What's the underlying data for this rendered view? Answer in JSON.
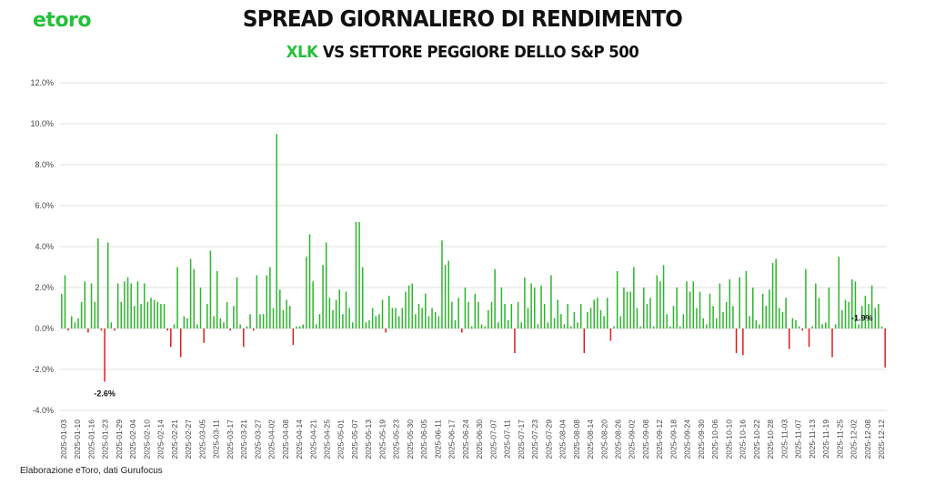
{
  "header": {
    "logo_text": "etoro",
    "title": "SPREAD GIORNALIERO DI RENDIMENTO",
    "subtitle_highlight": "XLK",
    "subtitle_rest": "VS SETTORE PEGGIORE DELLO S&P 500"
  },
  "footer": {
    "source": "Elaborazione eToro, dati Gurufocus"
  },
  "colors": {
    "positive": "#2db52d",
    "negative": "#e01b1b",
    "brand": "#25c03a",
    "grid": "#e2e2e2",
    "text": "#444444"
  },
  "chart_data": {
    "type": "bar",
    "title": "SPREAD GIORNALIERO DI RENDIMENTO",
    "subtitle": "XLK VS SETTORE PEGGIORE DELLO S&P 500",
    "xlabel": "",
    "ylabel": "",
    "ylim": [
      -4.0,
      12.0
    ],
    "yticks": [
      -4.0,
      -2.0,
      0.0,
      2.0,
      4.0,
      6.0,
      8.0,
      10.0,
      12.0
    ],
    "ytick_labels": [
      "-4.0%",
      "-2.0%",
      "0.0%",
      "2.0%",
      "4.0%",
      "6.0%",
      "8.0%",
      "10.0%",
      "12.0%"
    ],
    "grid": true,
    "xtick_labels": [
      "2025-01-03",
      "2025-01-10",
      "2025-01-16",
      "2025-01-23",
      "2025-01-29",
      "2025-02-04",
      "2025-02-10",
      "2025-02-14",
      "2025-02-21",
      "2025-02-27",
      "2025-03-05",
      "2025-03-11",
      "2025-03-17",
      "2025-03-21",
      "2025-03-27",
      "2025-04-02",
      "2025-04-08",
      "2025-04-14",
      "2025-04-21",
      "2025-04-25",
      "2025-05-01",
      "2025-05-07",
      "2025-05-13",
      "2025-05-19",
      "2025-05-23",
      "2025-05-30",
      "2025-06-05",
      "2025-06-11",
      "2025-06-17",
      "2025-06-24",
      "2025-06-30",
      "2025-07-07",
      "2025-07-11",
      "2025-07-17",
      "2025-07-23",
      "2025-07-29",
      "2025-08-04",
      "2025-08-08",
      "2025-08-14",
      "2025-08-20",
      "2025-08-26",
      "2025-09-02",
      "2025-09-08",
      "2025-09-12",
      "2025-09-18",
      "2025-09-24",
      "2025-09-30",
      "2025-10-06",
      "2025-10-10",
      "2025-10-16",
      "2025-10-22",
      "2025-10-28",
      "2025-11-03",
      "2025-11-07",
      "2025-11-13",
      "2025-11-19",
      "2025-11-25",
      "2025-12-02",
      "2025-12-08",
      "2025-12-12"
    ],
    "values": [
      1.7,
      2.6,
      -0.1,
      0.6,
      0.3,
      0.5,
      1.3,
      2.3,
      -0.2,
      2.2,
      1.3,
      4.4,
      -0.1,
      -2.6,
      4.2,
      0.3,
      -0.1,
      2.2,
      1.3,
      2.3,
      2.5,
      2.2,
      1.1,
      2.3,
      1.2,
      2.2,
      1.3,
      1.5,
      1.4,
      1.3,
      1.2,
      1.2,
      -0.1,
      -0.9,
      0.2,
      3.0,
      -1.4,
      0.6,
      0.5,
      3.4,
      2.9,
      0.2,
      2.0,
      -0.7,
      1.2,
      3.8,
      0.6,
      2.8,
      0.5,
      0.3,
      1.3,
      -0.1,
      1.1,
      2.5,
      0.2,
      -0.9,
      0.1,
      0.7,
      -0.1,
      2.6,
      0.7,
      0.7,
      2.6,
      3.0,
      1.0,
      9.5,
      1.9,
      0.9,
      1.4,
      1.1,
      -0.8,
      0.1,
      0.1,
      0.2,
      3.5,
      4.6,
      2.3,
      0.2,
      0.7,
      3.1,
      4.2,
      1.5,
      0.9,
      1.4,
      1.9,
      0.7,
      1.8,
      1.0,
      0.3,
      5.2,
      5.2,
      3.0,
      0.3,
      0.4,
      1.0,
      0.6,
      0.7,
      1.4,
      -0.2,
      1.6,
      1.0,
      1.0,
      0.6,
      1.0,
      1.8,
      2.1,
      2.2,
      0.7,
      1.2,
      1.0,
      1.7,
      0.6,
      1.0,
      0.8,
      0.6,
      4.3,
      3.1,
      3.3,
      1.3,
      0.4,
      1.5,
      -0.2,
      2.0,
      1.3,
      0.1,
      1.7,
      1.3,
      0.2,
      0.1,
      0.9,
      1.3,
      2.9,
      0.3,
      2.0,
      1.2,
      0.4,
      1.2,
      -1.2,
      1.3,
      0.3,
      2.5,
      1.0,
      2.2,
      2.0,
      0.2,
      2.1,
      1.2,
      0.3,
      2.6,
      0.5,
      1.4,
      0.7,
      0.2,
      1.2,
      0.1,
      0.8,
      0.3,
      1.2,
      -1.2,
      0.8,
      1.0,
      1.4,
      1.5,
      0.9,
      0.6,
      1.5,
      -0.6,
      0.1,
      2.8,
      0.6,
      2.0,
      1.8,
      1.8,
      3.0,
      1.0,
      0.1,
      2.0,
      1.2,
      1.5,
      0.1,
      2.6,
      2.3,
      3.1,
      0.7,
      0.1,
      1.1,
      2.0,
      0.1,
      0.7,
      2.3,
      1.8,
      2.3,
      1.0,
      1.8,
      0.5,
      0.2,
      1.7,
      1.1,
      0.5,
      2.2,
      0.8,
      1.3,
      2.4,
      1.1,
      -1.2,
      2.5,
      -1.3,
      2.8,
      0.6,
      2.0,
      0.4,
      0.2,
      1.7,
      1.1,
      1.9,
      3.2,
      3.4,
      1.0,
      0.8,
      1.5,
      -1.0,
      0.5,
      0.4,
      0.1,
      -0.1,
      2.9,
      -0.9,
      0.1,
      2.2,
      1.5,
      0.2,
      0.3,
      2.0,
      -1.4,
      0.2,
      3.5,
      0.9,
      1.4,
      1.3,
      2.4,
      2.3,
      0.2,
      1.1,
      1.6,
      1.2,
      2.1,
      1.0,
      1.2,
      0.1,
      -1.9
    ],
    "annotations": [
      {
        "label": "-2.6%",
        "index": 13
      },
      {
        "label": "-1.9%",
        "index": 242
      }
    ]
  }
}
